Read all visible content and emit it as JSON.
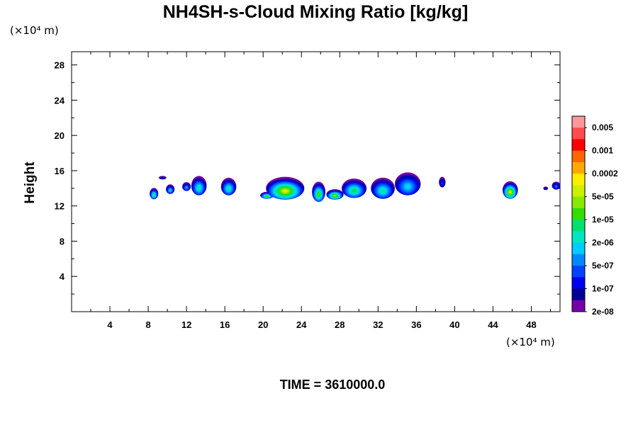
{
  "chart_data": {
    "type": "heatmap",
    "title": "NH4SH-s-Cloud Mixing Ratio [kg/kg]",
    "ylabel": "Height",
    "y_unit": "(×10⁴ m)",
    "x_unit": "(×10⁴ m)",
    "xlim": [
      0,
      51
    ],
    "ylim": [
      0,
      29.5
    ],
    "x_ticks": [
      4,
      8,
      12,
      16,
      20,
      24,
      28,
      32,
      36,
      40,
      44,
      48
    ],
    "y_ticks": [
      4,
      8,
      12,
      16,
      20,
      24,
      28
    ],
    "footer": "TIME = 3610000.0",
    "legend": {
      "labels": [
        "0.005",
        "0.001",
        "0.0002",
        "5e-05",
        "1e-05",
        "2e-06",
        "5e-07",
        "1e-07",
        "2e-08"
      ],
      "colors": [
        "#ff9999",
        "#ff4d4d",
        "#ff0000",
        "#ff6600",
        "#ffaa00",
        "#ffee00",
        "#ccf000",
        "#88e800",
        "#33dd00",
        "#00e070",
        "#00e6c0",
        "#00ccff",
        "#0088ff",
        "#0044ff",
        "#0000ee",
        "#000099",
        "#7700aa"
      ]
    },
    "blobs": [
      {
        "x": 8.6,
        "y": 13.4,
        "w": 0.9,
        "h": 1.3,
        "level": 8
      },
      {
        "x": 9.5,
        "y": 15.2,
        "w": 0.8,
        "h": 0.4,
        "level": 14
      },
      {
        "x": 10.3,
        "y": 13.9,
        "w": 0.9,
        "h": 1.1,
        "level": 10
      },
      {
        "x": 12.0,
        "y": 14.2,
        "w": 0.9,
        "h": 1.0,
        "level": 11
      },
      {
        "x": 13.3,
        "y": 14.3,
        "w": 1.6,
        "h": 2.2,
        "level": 9
      },
      {
        "x": 16.4,
        "y": 14.2,
        "w": 1.6,
        "h": 2.0,
        "level": 9
      },
      {
        "x": 20.4,
        "y": 13.2,
        "w": 1.4,
        "h": 0.8,
        "level": 7
      },
      {
        "x": 22.3,
        "y": 14.0,
        "w": 4.0,
        "h": 2.6,
        "level": 5
      },
      {
        "x": 25.8,
        "y": 13.6,
        "w": 1.4,
        "h": 2.3,
        "level": 7
      },
      {
        "x": 27.5,
        "y": 13.3,
        "w": 1.8,
        "h": 1.2,
        "level": 6
      },
      {
        "x": 29.5,
        "y": 14.0,
        "w": 2.6,
        "h": 2.2,
        "level": 8
      },
      {
        "x": 32.5,
        "y": 14.0,
        "w": 2.5,
        "h": 2.4,
        "level": 9
      },
      {
        "x": 35.1,
        "y": 14.5,
        "w": 2.7,
        "h": 2.6,
        "level": 10
      },
      {
        "x": 38.7,
        "y": 14.7,
        "w": 0.7,
        "h": 1.2,
        "level": 13
      },
      {
        "x": 45.8,
        "y": 13.8,
        "w": 1.6,
        "h": 2.0,
        "level": 5
      },
      {
        "x": 49.5,
        "y": 14.0,
        "w": 0.5,
        "h": 0.4,
        "level": 14
      },
      {
        "x": 50.6,
        "y": 14.3,
        "w": 0.9,
        "h": 0.9,
        "level": 12
      }
    ]
  }
}
